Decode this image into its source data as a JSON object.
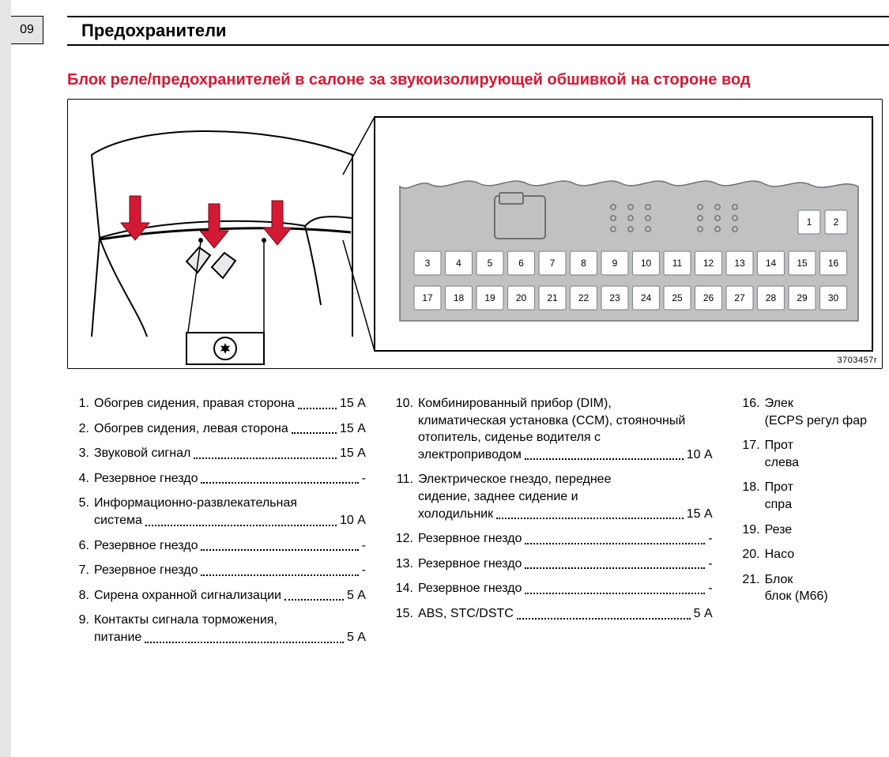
{
  "page_number": "09",
  "chapter_title": "Предохранители",
  "section_title": "Блок реле/предохранителей в салоне за звукоизолирующей обшивкой на стороне вод",
  "diagram": {
    "code": "3703457r",
    "fuse_top_start": 1,
    "fuse_top_end": 2,
    "fuse_row1_start": 3,
    "fuse_row1_end": 16,
    "fuse_row2_start": 17,
    "fuse_row2_end": 30,
    "colors": {
      "panel_fill": "#bfc1c3",
      "panel_stroke": "#6d6f71",
      "slot_fill": "#ffffff",
      "slot_stroke": "#8a8c8e",
      "arrow_fill": "#d31a34",
      "line": "#000000"
    }
  },
  "columns": [
    [
      {
        "n": "1.",
        "text": "Обогрев сидения, правая сторона",
        "amp": "15 А"
      },
      {
        "n": "2.",
        "text": "Обогрев сидения, левая сторона",
        "amp": "15 А"
      },
      {
        "n": "3.",
        "text": "Звуковой сигнал",
        "amp": "15 А"
      },
      {
        "n": "4.",
        "text": "Резервное гнездо",
        "amp": "-"
      },
      {
        "n": "5.",
        "text": "Информационно-развлекательная",
        "cont": "система",
        "amp": "10 А"
      },
      {
        "n": "6.",
        "text": "Резервное гнездо",
        "amp": "-"
      },
      {
        "n": "7.",
        "text": "Резервное гнездо",
        "amp": "-"
      },
      {
        "n": "8.",
        "text": "Сирена охранной сигнализации",
        "amp": "5 А"
      },
      {
        "n": "9.",
        "text": "Контакты сигнала торможения,",
        "cont": "питание",
        "amp": "5 А"
      }
    ],
    [
      {
        "n": "10.",
        "text": "Комбинированный прибор (DIM),",
        "cont": "климатическая установка (CCM), стояночный отопитель, сиденье водителя с электроприводом",
        "amp": "10 А"
      },
      {
        "n": "11.",
        "text": "Электрическое гнездо, переднее",
        "cont": "сидение, заднее сидение и холодильник",
        "amp": "15 А"
      },
      {
        "n": "12.",
        "text": "Резервное гнездо",
        "amp": "-"
      },
      {
        "n": "13.",
        "text": "Резервное гнездо",
        "amp": "-"
      },
      {
        "n": "14.",
        "text": "Резервное гнездо",
        "amp": "-"
      },
      {
        "n": "15.",
        "text": "ABS, STC/DSTC",
        "amp": "5 А"
      }
    ],
    [
      {
        "n": "16.",
        "text": "Элек",
        "cont": "(ECPS регул фар"
      },
      {
        "n": "17.",
        "text": "Прот",
        "cont": "слева"
      },
      {
        "n": "18.",
        "text": "Прот",
        "cont": "спра"
      },
      {
        "n": "19.",
        "text": "Резе"
      },
      {
        "n": "20.",
        "text": "Насо"
      },
      {
        "n": "21.",
        "text": "Блок",
        "cont": "блок (M66)"
      }
    ]
  ]
}
